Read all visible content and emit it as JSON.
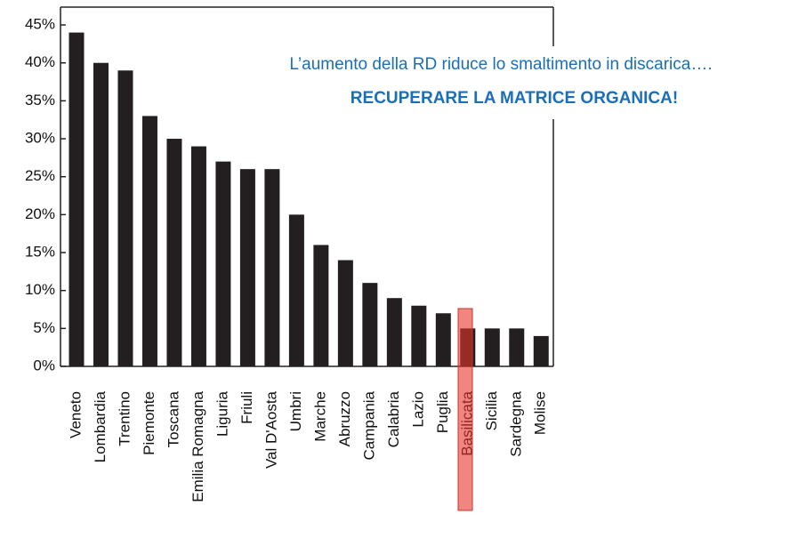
{
  "chart_data": {
    "type": "bar",
    "annotations": [
      "L’aumento della RD riduce lo smaltimento in discarica….",
      "RECUPERARE LA MATRICE ORGANICA!"
    ],
    "categories": [
      "Veneto",
      "Lombardia",
      "Trentino",
      "Piemonte",
      "Toscana",
      "Emilia Romagna",
      "Liguria",
      "Friuli",
      "Val D'Aosta",
      "Umbri",
      "Marche",
      "Abruzzo",
      "Campania",
      "Calabria",
      "Lazio",
      "Puglia",
      "Basilicata",
      "Sicilia",
      "Sardegna",
      "Molise"
    ],
    "values": [
      44,
      40,
      39,
      33,
      30,
      29,
      27,
      26,
      26,
      20,
      16,
      14,
      11,
      9,
      8,
      7,
      5,
      5,
      5,
      4
    ],
    "color": "#231f20",
    "ylim": [
      0,
      47
    ],
    "yticks": [
      {
        "value": 0,
        "label": "0%"
      },
      {
        "value": 5,
        "label": "5%"
      },
      {
        "value": 10,
        "label": "10%"
      },
      {
        "value": 15,
        "label": "15%"
      },
      {
        "value": 20,
        "label": "20%"
      },
      {
        "value": 25,
        "label": "25%"
      },
      {
        "value": 30,
        "label": "30%"
      },
      {
        "value": 35,
        "label": "35%"
      },
      {
        "value": 40,
        "label": "40%"
      },
      {
        "value": 45,
        "label": "45%"
      }
    ],
    "grid": false
  }
}
